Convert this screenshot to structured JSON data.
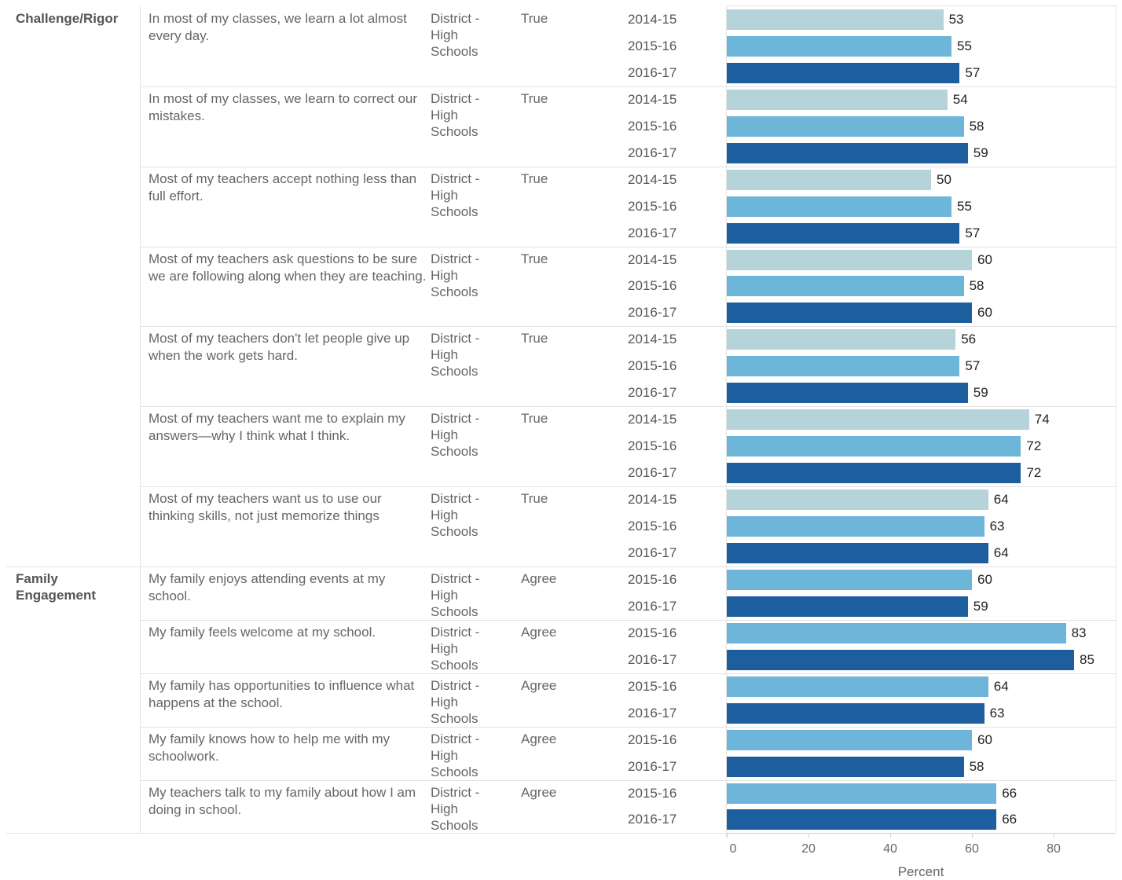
{
  "chart_data": {
    "type": "bar",
    "orientation": "horizontal",
    "xlabel": "Percent",
    "xlim": [
      0,
      95
    ],
    "xticks": [
      0,
      20,
      40,
      60,
      80
    ],
    "grid": false,
    "colors": {
      "2014-15": "#b4d4da",
      "2015-16": "#6db6d9",
      "2016-17": "#1c5e9e"
    },
    "groups": [
      {
        "category": "Challenge/Rigor",
        "questions": [
          {
            "text": "In most of my classes, we learn a lot almost every day.",
            "location": "District - High Schools",
            "response": "True",
            "values": [
              {
                "year": "2014-15",
                "value": 53
              },
              {
                "year": "2015-16",
                "value": 55
              },
              {
                "year": "2016-17",
                "value": 57
              }
            ]
          },
          {
            "text": "In most of my classes, we learn to correct our mistakes.",
            "location": "District - High Schools",
            "response": "True",
            "values": [
              {
                "year": "2014-15",
                "value": 54
              },
              {
                "year": "2015-16",
                "value": 58
              },
              {
                "year": "2016-17",
                "value": 59
              }
            ]
          },
          {
            "text": "Most of my teachers accept nothing less than full effort.",
            "location": "District - High Schools",
            "response": "True",
            "values": [
              {
                "year": "2014-15",
                "value": 50
              },
              {
                "year": "2015-16",
                "value": 55
              },
              {
                "year": "2016-17",
                "value": 57
              }
            ]
          },
          {
            "text": "Most of my teachers ask questions to be sure we are following along when they are teaching.",
            "location": "District - High Schools",
            "response": "True",
            "values": [
              {
                "year": "2014-15",
                "value": 60
              },
              {
                "year": "2015-16",
                "value": 58
              },
              {
                "year": "2016-17",
                "value": 60
              }
            ]
          },
          {
            "text": "Most of my teachers don't let people give up when the work gets hard.",
            "location": "District - High Schools",
            "response": "True",
            "values": [
              {
                "year": "2014-15",
                "value": 56
              },
              {
                "year": "2015-16",
                "value": 57
              },
              {
                "year": "2016-17",
                "value": 59
              }
            ]
          },
          {
            "text": "Most of my teachers want me to explain my answers—why I think what I think.",
            "location": "District - High Schools",
            "response": "True",
            "values": [
              {
                "year": "2014-15",
                "value": 74
              },
              {
                "year": "2015-16",
                "value": 72
              },
              {
                "year": "2016-17",
                "value": 72
              }
            ]
          },
          {
            "text": "Most of my teachers want us to use our thinking skills, not just memorize things",
            "location": "District - High Schools",
            "response": "True",
            "values": [
              {
                "year": "2014-15",
                "value": 64
              },
              {
                "year": "2015-16",
                "value": 63
              },
              {
                "year": "2016-17",
                "value": 64
              }
            ]
          }
        ]
      },
      {
        "category": "Family Engagement",
        "questions": [
          {
            "text": "My family enjoys attending events at my school.",
            "location": "District - High Schools",
            "response": "Agree",
            "values": [
              {
                "year": "2015-16",
                "value": 60
              },
              {
                "year": "2016-17",
                "value": 59
              }
            ]
          },
          {
            "text": "My family feels welcome at my school.",
            "location": "District - High Schools",
            "response": "Agree",
            "values": [
              {
                "year": "2015-16",
                "value": 83
              },
              {
                "year": "2016-17",
                "value": 85
              }
            ]
          },
          {
            "text": "My family has opportunities to influence what happens at the school.",
            "location": "District - High Schools",
            "response": "Agree",
            "values": [
              {
                "year": "2015-16",
                "value": 64
              },
              {
                "year": "2016-17",
                "value": 63
              }
            ]
          },
          {
            "text": "My family knows how to help me with my schoolwork.",
            "location": "District - High Schools",
            "response": "Agree",
            "values": [
              {
                "year": "2015-16",
                "value": 60
              },
              {
                "year": "2016-17",
                "value": 58
              }
            ]
          },
          {
            "text": "My teachers talk to my family about how I am doing in school.",
            "location": "District - High Schools",
            "response": "Agree",
            "values": [
              {
                "year": "2015-16",
                "value": 66
              },
              {
                "year": "2016-17",
                "value": 66
              }
            ]
          }
        ]
      }
    ]
  }
}
